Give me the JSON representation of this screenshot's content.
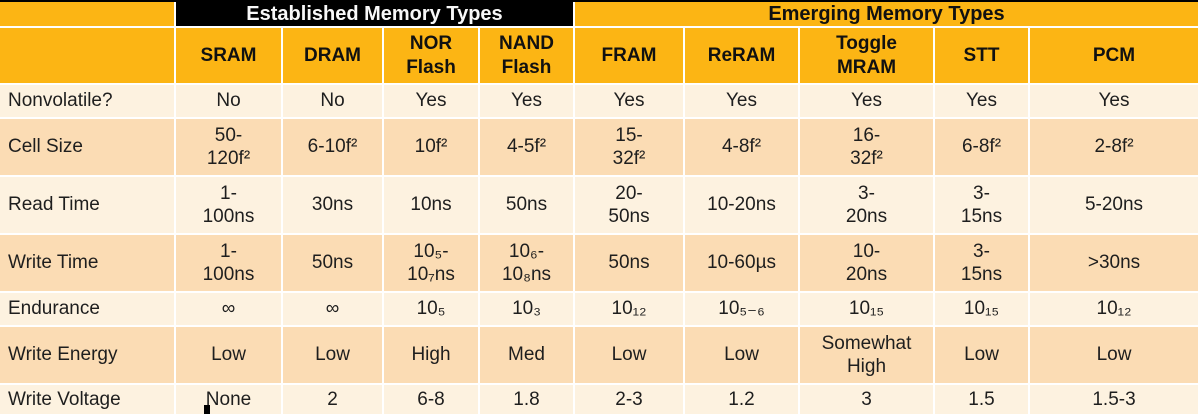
{
  "colors": {
    "gold": "#fcb514",
    "banner_black": "#000000",
    "row_light": "#fdf2e0",
    "row_dark": "#fbdcb4",
    "grid_line": "#ffffff",
    "text": "#1e1e1e"
  },
  "table": {
    "group_headers": {
      "established": "Established Memory Types",
      "emerging": "Emerging Memory Types"
    },
    "columns": {
      "0": "SRAM",
      "1": "DRAM",
      "2": "NOR\nFlash",
      "3": "NAND\nFlash",
      "4": "FRAM",
      "5": "ReRAM",
      "6": "Toggle\nMRAM",
      "7": "STT",
      "8": "PCM"
    },
    "rows": [
      {
        "label": "Nonvolatile?",
        "values": [
          "No",
          "No",
          "Yes",
          "Yes",
          "Yes",
          "Yes",
          "Yes",
          "Yes",
          "Yes"
        ]
      },
      {
        "label": "Cell Size",
        "values": [
          "50-\n120f²",
          "6-10f²",
          "10f²",
          "4-5f²",
          "15-\n32f²",
          "4-8f²",
          "16-\n32f²",
          "6-8f²",
          "2-8f²"
        ]
      },
      {
        "label": "Read Time",
        "values": [
          "1-\n100ns",
          "30ns",
          "10ns",
          "50ns",
          "20-\n50ns",
          "10-20ns",
          "3-\n20ns",
          "3-\n15ns",
          "5-20ns"
        ]
      },
      {
        "label": "Write Time",
        "values": [
          "1-\n100ns",
          "50ns",
          "10₅-\n10₇ns",
          "10₆-\n10₈ns",
          "50ns",
          "10-60µs",
          "10-\n20ns",
          "3-\n15ns",
          ">30ns"
        ]
      },
      {
        "label": "Endurance",
        "values": [
          "∞",
          "∞",
          "10₅",
          "10₃",
          "10₁₂",
          "10₅₋₆",
          "10₁₅",
          "10₁₅",
          "10₁₂"
        ]
      },
      {
        "label": "Write Energy",
        "values": [
          "Low",
          "Low",
          "High",
          "Med",
          "Low",
          "Low",
          "Somewhat\nHigh",
          "Low",
          "Low"
        ]
      },
      {
        "label": "Write Voltage",
        "values": [
          "None",
          "2",
          "6-8",
          "1.8",
          "2-3",
          "1.2",
          "3",
          "1.5",
          "1.5-3"
        ]
      }
    ]
  }
}
